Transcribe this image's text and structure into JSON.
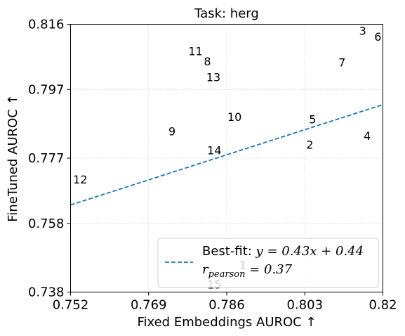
{
  "chart_data": {
    "type": "scatter",
    "title": "Task: herg",
    "xlabel": "Fixed Embeddings AUROC ↑",
    "ylabel": "FineTuned AUROC ↑",
    "xlim": [
      0.752,
      0.82
    ],
    "ylim": [
      0.738,
      0.816
    ],
    "xticks": [
      "0.752",
      "0.769",
      "0.786",
      "0.803",
      "0.82"
    ],
    "yticks": [
      "0.738",
      "0.758",
      "0.777",
      "0.797",
      "0.816"
    ],
    "grid": true,
    "points": [
      {
        "label": "1",
        "x": 0.7895,
        "y": 0.7459
      },
      {
        "label": "2",
        "x": 0.8041,
        "y": 0.7809
      },
      {
        "label": "3",
        "x": 0.8156,
        "y": 0.8141
      },
      {
        "label": "4",
        "x": 0.8166,
        "y": 0.7835
      },
      {
        "label": "5",
        "x": 0.8047,
        "y": 0.7883
      },
      {
        "label": "6",
        "x": 0.8189,
        "y": 0.8123
      },
      {
        "label": "7",
        "x": 0.8111,
        "y": 0.8048
      },
      {
        "label": "8",
        "x": 0.7818,
        "y": 0.8052
      },
      {
        "label": "9",
        "x": 0.7741,
        "y": 0.7848
      },
      {
        "label": "10",
        "x": 0.7877,
        "y": 0.789
      },
      {
        "label": "11",
        "x": 0.7792,
        "y": 0.8081
      },
      {
        "label": "12",
        "x": 0.7541,
        "y": 0.7708
      },
      {
        "label": "13",
        "x": 0.7831,
        "y": 0.8005
      },
      {
        "label": "14",
        "x": 0.7833,
        "y": 0.7793
      },
      {
        "label": "15",
        "x": 0.7833,
        "y": 0.7401
      }
    ],
    "fit": {
      "slope": 0.43,
      "intercept": 0.44,
      "style": "dashed",
      "color": "#1f77b4"
    },
    "legend": {
      "placement": "lower-right",
      "fit_prefix": "Best-fit: ",
      "fit_equation": "y = 0.43x + 0.44",
      "r_symbol": "r",
      "r_subscript": "pearson",
      "r_value": " = 0.37"
    }
  }
}
